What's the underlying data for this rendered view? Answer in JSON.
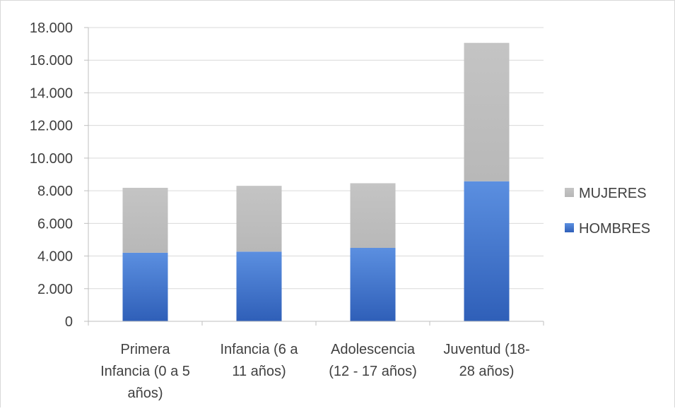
{
  "chart_data": {
    "type": "bar",
    "stacked": true,
    "categories": [
      [
        "Primera",
        "Infancia (0 a 5",
        "años)"
      ],
      [
        "Infancia (6 a",
        "11 años)"
      ],
      [
        "Adolescencia",
        "(12 - 17 años)"
      ],
      [
        "Juventud (18-",
        "28 años)"
      ]
    ],
    "series": [
      {
        "name": "HOMBRES",
        "color": "#4472c4",
        "values": [
          4200,
          4270,
          4500,
          8580
        ]
      },
      {
        "name": "MUJERES",
        "color": "#bfbfbf",
        "values": [
          3980,
          4030,
          3960,
          8480
        ]
      }
    ],
    "ylim": [
      0,
      18000
    ],
    "yticks": [
      0,
      2000,
      4000,
      6000,
      8000,
      10000,
      12000,
      14000,
      16000,
      18000
    ],
    "ytick_labels": [
      "0",
      "2.000",
      "4.000",
      "6.000",
      "8.000",
      "10.000",
      "12.000",
      "14.000",
      "16.000",
      "18.000"
    ],
    "grid": true,
    "legend_position": "right",
    "legend_order": [
      "MUJERES",
      "HOMBRES"
    ],
    "title": "",
    "xlabel": "",
    "ylabel": ""
  }
}
